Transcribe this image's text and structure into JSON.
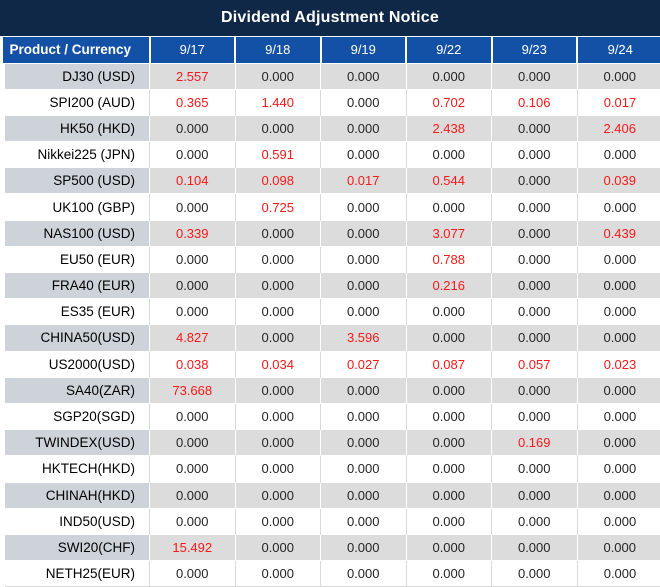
{
  "title": "Dividend Adjustment Notice",
  "colors": {
    "title_bar_bg": "#0f2847",
    "header_bg": "#1251a5",
    "header_text": "#ffffff",
    "stripe_product_bg": "#ced3d9",
    "stripe_value_bg": "#dcdcdc",
    "nonzero_value_red": "#f81818",
    "zero_value_text": "#252525"
  },
  "table": {
    "product_header": "Product / Currency",
    "dates": [
      "9/17",
      "9/18",
      "9/19",
      "9/22",
      "9/23",
      "9/24"
    ],
    "rows": [
      {
        "product": "DJ30 (USD)",
        "values": [
          "2.557",
          "0.000",
          "0.000",
          "0.000",
          "0.000",
          "0.000"
        ]
      },
      {
        "product": "SPI200 (AUD)",
        "values": [
          "0.365",
          "1.440",
          "0.000",
          "0.702",
          "0.106",
          "0.017"
        ]
      },
      {
        "product": "HK50 (HKD)",
        "values": [
          "0.000",
          "0.000",
          "0.000",
          "2.438",
          "0.000",
          "2.406"
        ]
      },
      {
        "product": "Nikkei225 (JPN)",
        "values": [
          "0.000",
          "0.591",
          "0.000",
          "0.000",
          "0.000",
          "0.000"
        ]
      },
      {
        "product": "SP500 (USD)",
        "values": [
          "0.104",
          "0.098",
          "0.017",
          "0.544",
          "0.000",
          "0.039"
        ]
      },
      {
        "product": "UK100 (GBP)",
        "values": [
          "0.000",
          "0.725",
          "0.000",
          "0.000",
          "0.000",
          "0.000"
        ]
      },
      {
        "product": "NAS100 (USD)",
        "values": [
          "0.339",
          "0.000",
          "0.000",
          "3.077",
          "0.000",
          "0.439"
        ]
      },
      {
        "product": "EU50 (EUR)",
        "values": [
          "0.000",
          "0.000",
          "0.000",
          "0.788",
          "0.000",
          "0.000"
        ]
      },
      {
        "product": "FRA40 (EUR)",
        "values": [
          "0.000",
          "0.000",
          "0.000",
          "0.216",
          "0.000",
          "0.000"
        ]
      },
      {
        "product": "ES35 (EUR)",
        "values": [
          "0.000",
          "0.000",
          "0.000",
          "0.000",
          "0.000",
          "0.000"
        ]
      },
      {
        "product": "CHINA50(USD)",
        "values": [
          "4.827",
          "0.000",
          "3.596",
          "0.000",
          "0.000",
          "0.000"
        ]
      },
      {
        "product": "US2000(USD)",
        "values": [
          "0.038",
          "0.034",
          "0.027",
          "0.087",
          "0.057",
          "0.023"
        ]
      },
      {
        "product": "SA40(ZAR)",
        "values": [
          "73.668",
          "0.000",
          "0.000",
          "0.000",
          "0.000",
          "0.000"
        ]
      },
      {
        "product": "SGP20(SGD)",
        "values": [
          "0.000",
          "0.000",
          "0.000",
          "0.000",
          "0.000",
          "0.000"
        ]
      },
      {
        "product": "TWINDEX(USD)",
        "values": [
          "0.000",
          "0.000",
          "0.000",
          "0.000",
          "0.169",
          "0.000"
        ]
      },
      {
        "product": "HKTECH(HKD)",
        "values": [
          "0.000",
          "0.000",
          "0.000",
          "0.000",
          "0.000",
          "0.000"
        ]
      },
      {
        "product": "CHINAH(HKD)",
        "values": [
          "0.000",
          "0.000",
          "0.000",
          "0.000",
          "0.000",
          "0.000"
        ]
      },
      {
        "product": "IND50(USD)",
        "values": [
          "0.000",
          "0.000",
          "0.000",
          "0.000",
          "0.000",
          "0.000"
        ]
      },
      {
        "product": "SWI20(CHF)",
        "values": [
          "15.492",
          "0.000",
          "0.000",
          "0.000",
          "0.000",
          "0.000"
        ]
      },
      {
        "product": "NETH25(EUR)",
        "values": [
          "0.000",
          "0.000",
          "0.000",
          "0.000",
          "0.000",
          "0.000"
        ]
      }
    ]
  }
}
